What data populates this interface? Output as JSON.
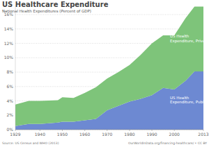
{
  "chart_data": {
    "type": "area",
    "title": "US Healthcare Expenditure",
    "subtitle": "National Health Expenditures (Percent of GDP)",
    "source": "Source: US Census and WHO (2013)",
    "credit": "OurWorldInData.org/financing-healthcare/ • CC BY",
    "stacked": true,
    "grid": true,
    "x": [
      1929,
      1935,
      1940,
      1948,
      1950,
      1955,
      1960,
      1965,
      1970,
      1975,
      1980,
      1985,
      1990,
      1995,
      2000,
      2005,
      2009,
      2013
    ],
    "series": [
      {
        "name": "US Health Expenditure, Public",
        "color": "#6d89d2",
        "values": [
          0.5,
          0.8,
          0.8,
          1.0,
          1.1,
          1.1,
          1.3,
          1.5,
          2.7,
          3.3,
          3.9,
          4.3,
          4.8,
          5.8,
          5.6,
          6.8,
          8.1,
          8.1
        ]
      },
      {
        "name": "US Health Expenditure, Private",
        "color": "#7ec47a",
        "values": [
          3.0,
          3.2,
          3.2,
          3.1,
          3.4,
          3.3,
          3.8,
          4.4,
          4.4,
          4.7,
          5.1,
          6.1,
          7.2,
          7.3,
          7.5,
          8.7,
          9.0,
          9.0
        ]
      }
    ],
    "xlim": [
      1929,
      2013
    ],
    "xticks": [
      1929,
      1940,
      1950,
      1960,
      1970,
      1980,
      1990,
      2000,
      2013
    ],
    "ylim": [
      0,
      17.2
    ],
    "yticks": [
      {
        "value": 0,
        "label": "0%"
      },
      {
        "value": 2,
        "label": "2%"
      },
      {
        "value": 4,
        "label": "4%"
      },
      {
        "value": 6,
        "label": "6%"
      },
      {
        "value": 8,
        "label": "8%"
      },
      {
        "value": 10,
        "label": "10%"
      },
      {
        "value": 12,
        "label": "12%"
      },
      {
        "value": 14,
        "label": "14%"
      },
      {
        "value": 16,
        "label": "16%"
      }
    ]
  }
}
